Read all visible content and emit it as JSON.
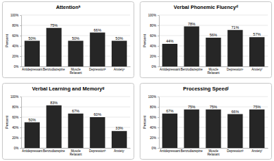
{
  "chart_data": [
    {
      "type": "bar",
      "title": "Attentionᵃ",
      "y_label": "Percent",
      "categories": [
        "Antidepressant",
        "Benzodiazepine",
        "Muscle Relaxant",
        "Depressionᵇ",
        "Anxietyᶜ"
      ],
      "values": [
        50,
        75,
        50,
        66,
        50
      ],
      "value_labels": [
        "50%",
        "75%",
        "50%",
        "66%",
        "50%"
      ],
      "color": "#262626",
      "ylim": [
        0,
        100
      ],
      "yticks": [
        {
          "value": 0,
          "label": "0%"
        },
        {
          "value": 20,
          "label": "20%"
        },
        {
          "value": 40,
          "label": "40%"
        },
        {
          "value": 60,
          "label": "60%"
        },
        {
          "value": 80,
          "label": "80%"
        },
        {
          "value": 100,
          "label": "100%"
        }
      ],
      "grid": true,
      "data_labels": true
    },
    {
      "type": "bar",
      "title": "Verbal Phonemic Fluencyᵈ",
      "y_label": "Percent",
      "categories": [
        "Antidepressant",
        "Benzodiazepine",
        "Muscle Relaxant",
        "Depressionᵉ",
        "Anxietyᶠ"
      ],
      "values": [
        44,
        78,
        56,
        71,
        57
      ],
      "value_labels": [
        "44%",
        "78%",
        "56%",
        "71%",
        "57%"
      ],
      "color": "#262626",
      "ylim": [
        0,
        100
      ],
      "yticks": [
        {
          "value": 0,
          "label": "0%"
        },
        {
          "value": 20,
          "label": "20%"
        },
        {
          "value": 40,
          "label": "40%"
        },
        {
          "value": 60,
          "label": "60%"
        },
        {
          "value": 80,
          "label": "80%"
        },
        {
          "value": 100,
          "label": "100%"
        }
      ],
      "grid": true,
      "data_labels": true
    },
    {
      "type": "bar",
      "title": "Verbal Learning and Memoryᵍ",
      "y_label": "Percent",
      "categories": [
        "Antidepressant",
        "Benzodiazepine",
        "Muscle Relaxant",
        "Depressionʰ",
        "Anxietyⁱ"
      ],
      "values": [
        50,
        83,
        67,
        60,
        33
      ],
      "value_labels": [
        "50%",
        "83%",
        "67%",
        "60%",
        "33%"
      ],
      "color": "#262626",
      "ylim": [
        0,
        100
      ],
      "yticks": [
        {
          "value": 0,
          "label": "0%"
        },
        {
          "value": 20,
          "label": "20%"
        },
        {
          "value": 40,
          "label": "40%"
        },
        {
          "value": 60,
          "label": "60%"
        },
        {
          "value": 80,
          "label": "80%"
        },
        {
          "value": 100,
          "label": "100%"
        }
      ],
      "grid": true,
      "data_labels": true
    },
    {
      "type": "bar",
      "title": "Processing Speedʲ",
      "y_label": "Percent",
      "categories": [
        "Antidepressant",
        "Benzodiazepine",
        "Muscle Relaxant",
        "Depressionᵏ",
        "Anxietyˡ"
      ],
      "values": [
        67,
        75,
        75,
        66,
        75
      ],
      "value_labels": [
        "67%",
        "75%",
        "75%",
        "66%",
        "75%"
      ],
      "color": "#262626",
      "ylim": [
        0,
        100
      ],
      "yticks": [
        {
          "value": 0,
          "label": "0%"
        },
        {
          "value": 20,
          "label": "20%"
        },
        {
          "value": 40,
          "label": "40%"
        },
        {
          "value": 60,
          "label": "60%"
        },
        {
          "value": 80,
          "label": "80%"
        },
        {
          "value": 100,
          "label": "100%"
        }
      ],
      "grid": true,
      "data_labels": true
    }
  ]
}
